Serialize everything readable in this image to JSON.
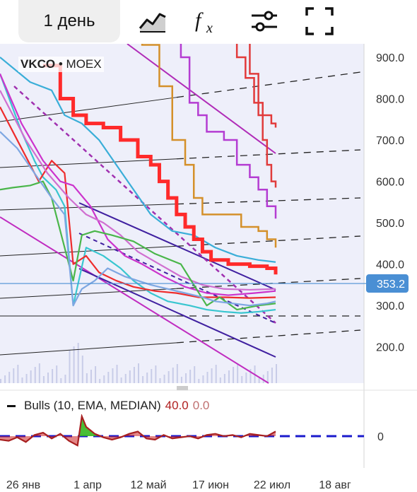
{
  "toolbar": {
    "interval_label": "1 день",
    "icons": [
      "chart-type-icon",
      "indicators-icon",
      "settings-sliders-icon",
      "fullscreen-icon"
    ]
  },
  "ticker": {
    "symbol": "VKCO",
    "separator": "•",
    "exchange": "MOEX"
  },
  "price_axis": {
    "labels": [
      "900.0",
      "800.0",
      "700.0",
      "600.0",
      "500.0",
      "400.0",
      "300.0",
      "200.0"
    ],
    "current_price": "353.2"
  },
  "indicator": {
    "name": "Bulls (10, EMA, MEDIAN)",
    "value1": "40.0",
    "value2": "0.0",
    "zero_label": "0"
  },
  "time_axis": {
    "labels": [
      "26 янв",
      "1 апр",
      "12 май",
      "17 июн",
      "22 июл",
      "18 авг"
    ]
  },
  "colors": {
    "accent": "#4a8fd4",
    "price_line": "#6aa6de",
    "grid": "#d0d0d0",
    "bull_fill": "#22cc22",
    "bear_fill": "#cc2222"
  },
  "chart_data": {
    "type": "line",
    "ylim": [
      130,
      965
    ],
    "yticks": [
      900,
      800,
      700,
      600,
      500,
      400,
      300,
      200
    ],
    "current_price": 353.2,
    "x_labels": [
      "26 янв",
      "1 апр",
      "12 май",
      "17 июн",
      "22 июл",
      "18 авг"
    ],
    "series": [
      {
        "color": "#3aaed8",
        "values": [
          [
            0,
            900
          ],
          [
            14,
            840
          ],
          [
            24,
            820
          ],
          [
            30,
            760
          ],
          [
            38,
            740
          ],
          [
            46,
            700
          ],
          [
            54,
            640
          ],
          [
            62,
            580
          ],
          [
            70,
            520
          ],
          [
            80,
            480
          ],
          [
            90,
            470
          ],
          [
            100,
            440
          ],
          [
            110,
            420
          ],
          [
            120,
            410
          ],
          [
            128,
            405
          ]
        ]
      },
      {
        "color": "#39c6d0",
        "values": [
          [
            0,
            860
          ],
          [
            10,
            720
          ],
          [
            16,
            650
          ],
          [
            20,
            610
          ],
          [
            26,
            580
          ],
          [
            30,
            540
          ],
          [
            34,
            300
          ],
          [
            40,
            440
          ],
          [
            48,
            420
          ],
          [
            56,
            390
          ],
          [
            62,
            360
          ],
          [
            70,
            330
          ],
          [
            78,
            310
          ],
          [
            88,
            300
          ],
          [
            96,
            290
          ],
          [
            104,
            285
          ],
          [
            112,
            282
          ],
          [
            120,
            285
          ],
          [
            128,
            290
          ]
        ]
      },
      {
        "color": "#ee2c2c",
        "values": [
          [
            0,
            780
          ],
          [
            8,
            700
          ],
          [
            14,
            640
          ],
          [
            18,
            600
          ],
          [
            24,
            650
          ],
          [
            30,
            620
          ],
          [
            34,
            400
          ],
          [
            40,
            420
          ],
          [
            46,
            380
          ],
          [
            54,
            360
          ],
          [
            62,
            345
          ],
          [
            72,
            335
          ],
          [
            82,
            330
          ],
          [
            92,
            320
          ],
          [
            104,
            320
          ],
          [
            116,
            318
          ],
          [
            128,
            320
          ]
        ]
      },
      {
        "color": "#cc33cc",
        "values": [
          [
            0,
            860
          ],
          [
            10,
            740
          ],
          [
            20,
            650
          ],
          [
            28,
            600
          ],
          [
            34,
            590
          ],
          [
            42,
            540
          ],
          [
            50,
            460
          ],
          [
            58,
            420
          ],
          [
            66,
            400
          ],
          [
            76,
            370
          ],
          [
            86,
            345
          ],
          [
            96,
            330
          ],
          [
            106,
            325
          ],
          [
            118,
            330
          ],
          [
            128,
            335
          ]
        ]
      },
      {
        "color": "#d06fd0",
        "values": [
          [
            0,
            820
          ],
          [
            12,
            700
          ],
          [
            22,
            620
          ],
          [
            32,
            560
          ],
          [
            40,
            520
          ],
          [
            48,
            500
          ],
          [
            56,
            470
          ],
          [
            64,
            430
          ],
          [
            74,
            400
          ],
          [
            84,
            370
          ],
          [
            94,
            350
          ],
          [
            104,
            340
          ],
          [
            116,
            338
          ],
          [
            128,
            340
          ]
        ]
      },
      {
        "color": "#4ab64a",
        "values": [
          [
            0,
            580
          ],
          [
            6,
            585
          ],
          [
            14,
            590
          ],
          [
            20,
            600
          ],
          [
            24,
            560
          ],
          [
            34,
            360
          ],
          [
            38,
            470
          ],
          [
            44,
            480
          ],
          [
            52,
            470
          ],
          [
            62,
            455
          ],
          [
            72,
            425
          ],
          [
            84,
            400
          ],
          [
            96,
            300
          ],
          [
            102,
            320
          ],
          [
            110,
            290
          ],
          [
            120,
            300
          ],
          [
            128,
            305
          ]
        ]
      },
      {
        "color": "#7ea7e2",
        "values": [
          [
            0,
            720
          ],
          [
            8,
            680
          ],
          [
            16,
            620
          ],
          [
            24,
            560
          ],
          [
            30,
            520
          ],
          [
            34,
            300
          ],
          [
            38,
            340
          ],
          [
            44,
            360
          ],
          [
            50,
            390
          ],
          [
            58,
            370
          ],
          [
            64,
            360
          ],
          [
            70,
            350
          ],
          [
            78,
            340
          ],
          [
            86,
            330
          ],
          [
            94,
            320
          ],
          [
            100,
            310
          ],
          [
            108,
            305
          ],
          [
            116,
            300
          ],
          [
            124,
            305
          ],
          [
            128,
            310
          ]
        ]
      }
    ],
    "steps": [
      {
        "color": "#d4902a",
        "values": [
          [
            0,
            965
          ],
          [
            62,
            965
          ],
          [
            66,
            930
          ],
          [
            74,
            830
          ],
          [
            80,
            700
          ],
          [
            86,
            640
          ],
          [
            90,
            560
          ],
          [
            94,
            520
          ],
          [
            104,
            520
          ],
          [
            112,
            490
          ],
          [
            120,
            480
          ],
          [
            124,
            460
          ],
          [
            128,
            440
          ]
        ]
      },
      {
        "color": "#ff2a2a",
        "values": [
          [
            20,
            880
          ],
          [
            28,
            800
          ],
          [
            34,
            760
          ],
          [
            40,
            740
          ],
          [
            48,
            730
          ],
          [
            56,
            700
          ],
          [
            64,
            660
          ],
          [
            70,
            640
          ],
          [
            74,
            600
          ],
          [
            78,
            560
          ],
          [
            82,
            520
          ],
          [
            86,
            490
          ],
          [
            90,
            460
          ],
          [
            94,
            430
          ],
          [
            98,
            410
          ],
          [
            106,
            400
          ],
          [
            116,
            395
          ],
          [
            124,
            390
          ],
          [
            128,
            375
          ]
        ]
      },
      {
        "color": "#e23a3a",
        "values": [
          [
            106,
            965
          ],
          [
            110,
            900
          ],
          [
            114,
            850
          ],
          [
            118,
            790
          ],
          [
            122,
            760
          ],
          [
            126,
            740
          ],
          [
            128,
            730
          ]
        ]
      },
      {
        "color": "#e03c3c",
        "values": [
          [
            112,
            965
          ],
          [
            116,
            860
          ],
          [
            120,
            760
          ],
          [
            122,
            700
          ],
          [
            124,
            640
          ],
          [
            126,
            600
          ],
          [
            128,
            585
          ]
        ]
      },
      {
        "color": "#b43cd2",
        "values": [
          [
            78,
            965
          ],
          [
            84,
            900
          ],
          [
            88,
            790
          ],
          [
            92,
            760
          ],
          [
            96,
            720
          ],
          [
            104,
            700
          ],
          [
            110,
            640
          ],
          [
            116,
            610
          ],
          [
            120,
            580
          ],
          [
            124,
            540
          ],
          [
            128,
            510
          ]
        ]
      }
    ],
    "indicator": {
      "name": "Bulls (10, EMA, MEDIAN)",
      "value1": 40.0,
      "value2": 0.0,
      "ylim": [
        -70,
        95
      ],
      "values": [
        [
          0,
          -15
        ],
        [
          4,
          -20
        ],
        [
          8,
          -5
        ],
        [
          12,
          -25
        ],
        [
          16,
          5
        ],
        [
          20,
          15
        ],
        [
          24,
          -10
        ],
        [
          28,
          10
        ],
        [
          32,
          -20
        ],
        [
          36,
          -40
        ],
        [
          38,
          85
        ],
        [
          40,
          40
        ],
        [
          44,
          10
        ],
        [
          48,
          -5
        ],
        [
          52,
          -15
        ],
        [
          56,
          -5
        ],
        [
          60,
          10
        ],
        [
          64,
          20
        ],
        [
          68,
          -10
        ],
        [
          72,
          -15
        ],
        [
          76,
          5
        ],
        [
          80,
          -10
        ],
        [
          84,
          -5
        ],
        [
          88,
          0
        ],
        [
          92,
          -10
        ],
        [
          96,
          5
        ],
        [
          100,
          10
        ],
        [
          104,
          0
        ],
        [
          108,
          5
        ],
        [
          112,
          -5
        ],
        [
          116,
          10
        ],
        [
          120,
          5
        ],
        [
          124,
          0
        ],
        [
          128,
          20
        ]
      ]
    }
  }
}
